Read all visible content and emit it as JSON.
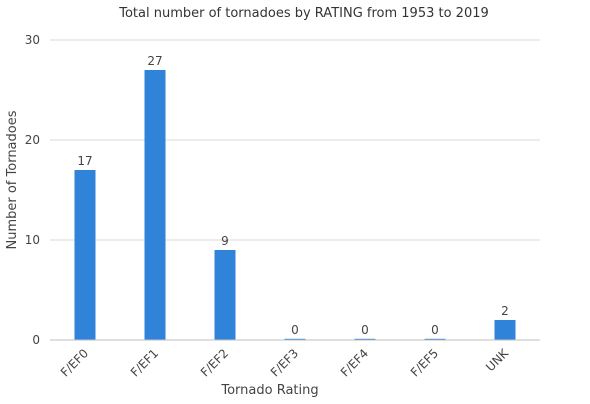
{
  "chart_data": {
    "type": "bar",
    "title": "Total number of tornadoes by RATING from 1953 to 2019",
    "xlabel": "Tornado Rating",
    "ylabel": "Number of Tornadoes",
    "categories": [
      "F/EF0",
      "F/EF1",
      "F/EF2",
      "F/EF3",
      "F/EF4",
      "F/EF5",
      "UNK"
    ],
    "values": [
      17,
      27,
      9,
      0,
      0,
      0,
      2
    ],
    "data_labels": [
      "17",
      "27",
      "9",
      "0",
      "0",
      "0",
      "2"
    ],
    "ylim": [
      0,
      30
    ],
    "yticks": [
      0,
      10,
      20,
      30
    ],
    "ytick_labels": [
      "0",
      "10",
      "20",
      "30"
    ],
    "grid": true,
    "legend": "none",
    "bar_color": "#2f83d9"
  }
}
